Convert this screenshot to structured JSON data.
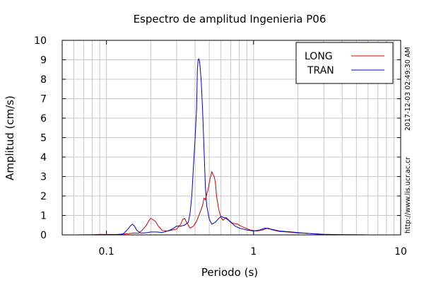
{
  "chart_data": {
    "type": "line",
    "title": "Espectro de amplitud Ingenieria P06",
    "xlabel": "Periodo (s)",
    "ylabel": "Amplitud (cm/s)",
    "x_scale": "log",
    "xlim": [
      0.05,
      10
    ],
    "ylim": [
      0,
      10
    ],
    "x_ticks": [
      {
        "value": 0.1,
        "label": "0.1"
      },
      {
        "value": 1,
        "label": "1"
      },
      {
        "value": 10,
        "label": "10"
      }
    ],
    "y_ticks": [
      0,
      1,
      2,
      3,
      4,
      5,
      6,
      7,
      8,
      9,
      10
    ],
    "grid": true,
    "legend_position": "top-right",
    "series": [
      {
        "name": "LONG",
        "color": "#cc0000",
        "points": [
          [
            0.05,
            0.0
          ],
          [
            0.06,
            0.0
          ],
          [
            0.08,
            0.01
          ],
          [
            0.09,
            0.03
          ],
          [
            0.1,
            0.02
          ],
          [
            0.12,
            0.03
          ],
          [
            0.14,
            0.06
          ],
          [
            0.155,
            0.1
          ],
          [
            0.165,
            0.08
          ],
          [
            0.175,
            0.25
          ],
          [
            0.185,
            0.45
          ],
          [
            0.195,
            0.75
          ],
          [
            0.2,
            0.85
          ],
          [
            0.205,
            0.8
          ],
          [
            0.215,
            0.7
          ],
          [
            0.225,
            0.45
          ],
          [
            0.24,
            0.22
          ],
          [
            0.26,
            0.2
          ],
          [
            0.28,
            0.25
          ],
          [
            0.3,
            0.3
          ],
          [
            0.32,
            0.55
          ],
          [
            0.33,
            0.8
          ],
          [
            0.34,
            0.85
          ],
          [
            0.35,
            0.65
          ],
          [
            0.37,
            0.35
          ],
          [
            0.39,
            0.45
          ],
          [
            0.41,
            0.7
          ],
          [
            0.43,
            1.1
          ],
          [
            0.45,
            1.5
          ],
          [
            0.46,
            1.9
          ],
          [
            0.47,
            1.8
          ],
          [
            0.48,
            2.1
          ],
          [
            0.49,
            2.3
          ],
          [
            0.5,
            2.7
          ],
          [
            0.51,
            3.0
          ],
          [
            0.52,
            3.25
          ],
          [
            0.53,
            3.1
          ],
          [
            0.54,
            3.0
          ],
          [
            0.55,
            2.7
          ],
          [
            0.56,
            2.0
          ],
          [
            0.58,
            1.3
          ],
          [
            0.6,
            0.9
          ],
          [
            0.62,
            0.75
          ],
          [
            0.65,
            0.9
          ],
          [
            0.68,
            0.75
          ],
          [
            0.72,
            0.6
          ],
          [
            0.78,
            0.55
          ],
          [
            0.82,
            0.45
          ],
          [
            0.88,
            0.35
          ],
          [
            0.95,
            0.25
          ],
          [
            1.05,
            0.2
          ],
          [
            1.15,
            0.25
          ],
          [
            1.25,
            0.35
          ],
          [
            1.35,
            0.25
          ],
          [
            1.5,
            0.18
          ],
          [
            1.7,
            0.15
          ],
          [
            2.0,
            0.1
          ],
          [
            2.3,
            0.08
          ],
          [
            2.7,
            0.05
          ],
          [
            3.0,
            0.03
          ],
          [
            4.0,
            0.01
          ],
          [
            6.0,
            0.0
          ],
          [
            10.0,
            0.0
          ]
        ]
      },
      {
        "name": "TRAN",
        "color": "#0000cc",
        "points": [
          [
            0.05,
            0.0
          ],
          [
            0.08,
            0.0
          ],
          [
            0.1,
            0.01
          ],
          [
            0.12,
            0.02
          ],
          [
            0.13,
            0.05
          ],
          [
            0.14,
            0.3
          ],
          [
            0.145,
            0.45
          ],
          [
            0.15,
            0.55
          ],
          [
            0.155,
            0.45
          ],
          [
            0.16,
            0.25
          ],
          [
            0.17,
            0.1
          ],
          [
            0.18,
            0.1
          ],
          [
            0.19,
            0.12
          ],
          [
            0.2,
            0.15
          ],
          [
            0.22,
            0.15
          ],
          [
            0.24,
            0.12
          ],
          [
            0.26,
            0.2
          ],
          [
            0.28,
            0.3
          ],
          [
            0.3,
            0.45
          ],
          [
            0.32,
            0.45
          ],
          [
            0.34,
            0.5
          ],
          [
            0.36,
            0.65
          ],
          [
            0.37,
            1.1
          ],
          [
            0.38,
            2.0
          ],
          [
            0.39,
            3.5
          ],
          [
            0.4,
            4.9
          ],
          [
            0.41,
            6.5
          ],
          [
            0.415,
            8.5
          ],
          [
            0.42,
            9.0
          ],
          [
            0.425,
            9.05
          ],
          [
            0.43,
            8.9
          ],
          [
            0.44,
            8.0
          ],
          [
            0.45,
            6.5
          ],
          [
            0.46,
            4.5
          ],
          [
            0.47,
            2.5
          ],
          [
            0.48,
            1.5
          ],
          [
            0.5,
            0.8
          ],
          [
            0.52,
            0.55
          ],
          [
            0.55,
            0.65
          ],
          [
            0.58,
            0.85
          ],
          [
            0.6,
            0.95
          ],
          [
            0.65,
            0.85
          ],
          [
            0.7,
            0.65
          ],
          [
            0.75,
            0.45
          ],
          [
            0.8,
            0.35
          ],
          [
            0.85,
            0.3
          ],
          [
            0.9,
            0.25
          ],
          [
            1.0,
            0.2
          ],
          [
            1.1,
            0.25
          ],
          [
            1.2,
            0.35
          ],
          [
            1.3,
            0.3
          ],
          [
            1.5,
            0.2
          ],
          [
            1.8,
            0.15
          ],
          [
            2.0,
            0.12
          ],
          [
            2.5,
            0.06
          ],
          [
            3.0,
            0.03
          ],
          [
            4.0,
            0.01
          ],
          [
            6.0,
            0.0
          ],
          [
            10.0,
            0.0
          ]
        ]
      }
    ]
  },
  "side_text": {
    "timestamp": "2017-12-03 02:49:30 AM",
    "url": "http://www.lis.ucr.ac.cr"
  }
}
